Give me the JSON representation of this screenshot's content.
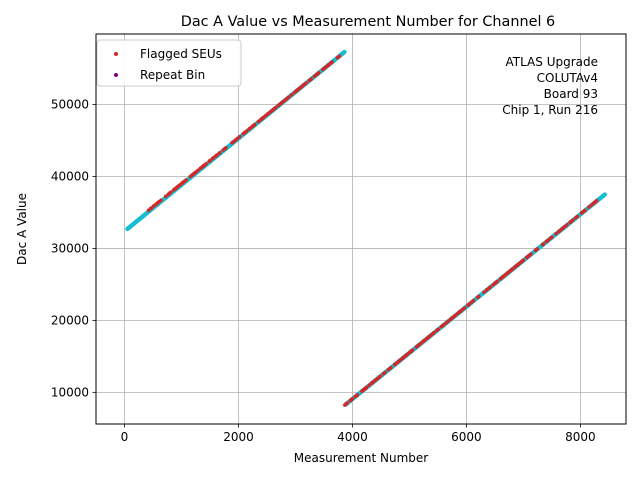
{
  "chart_data": {
    "type": "scatter",
    "title": "Dac A Value vs Measurement Number for Channel 6",
    "xlabel": "Measurement Number",
    "ylabel": "Dac A Value",
    "xlim": [
      -500,
      8800
    ],
    "ylim": [
      5600,
      59800
    ],
    "xticks": [
      0,
      2000,
      4000,
      6000,
      8000
    ],
    "yticks": [
      10000,
      20000,
      30000,
      40000,
      50000
    ],
    "xtick_labels": [
      "0",
      "2000",
      "4000",
      "6000",
      "8000"
    ],
    "ytick_labels": [
      "10000",
      "20000",
      "30000",
      "40000",
      "50000"
    ],
    "grid": true,
    "legend_position": "top-left",
    "annotation": [
      "ATLAS Upgrade",
      "COLUTAv4",
      "Board 93",
      "Chip 1, Run 216"
    ],
    "colors": {
      "cyan": "#17becf",
      "red": "#d62728",
      "purple": "#800080"
    },
    "series": [
      {
        "name": "",
        "color": "#17becf",
        "segments": [
          {
            "x": [
              50,
              3860
            ],
            "y": [
              32700,
              57300
            ]
          },
          {
            "x": [
              3880,
              8430
            ],
            "y": [
              8300,
              37500
            ]
          }
        ]
      },
      {
        "name": "Flagged SEUs",
        "color": "#d62728",
        "segments": [
          {
            "x": [
              420,
              3800
            ],
            "y": [
              35300,
              56900
            ]
          },
          {
            "x": [
              3860,
              8360
            ],
            "y": [
              8200,
              37100
            ]
          }
        ]
      },
      {
        "name": "Repeat Bin",
        "color": "#800080",
        "segments": []
      }
    ]
  }
}
